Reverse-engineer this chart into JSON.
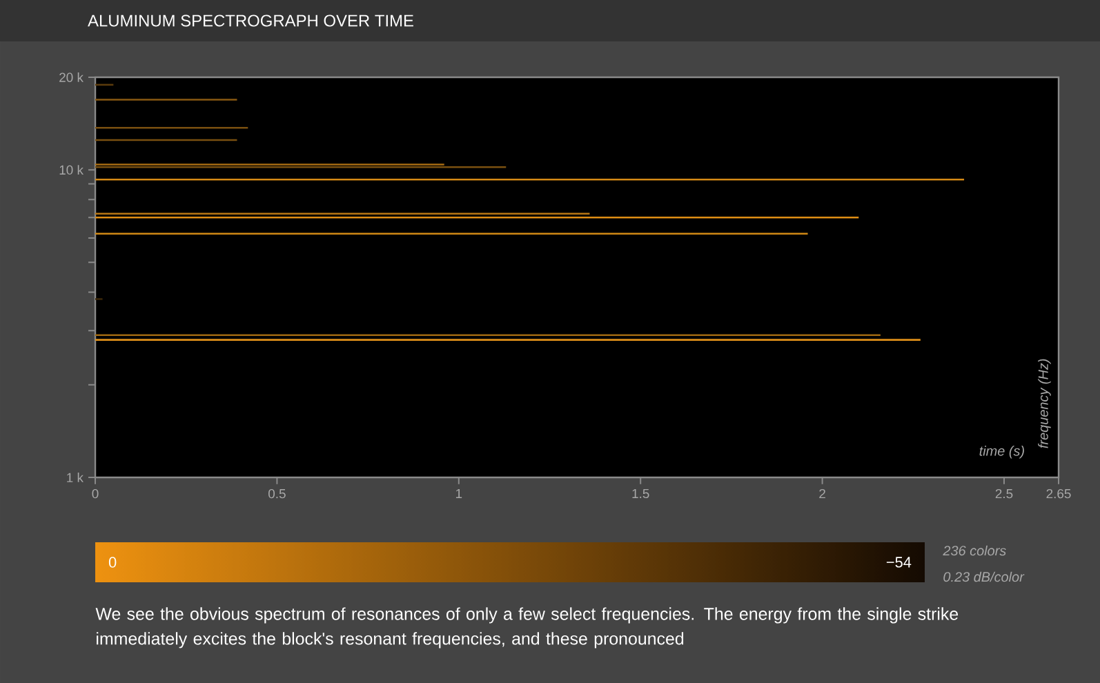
{
  "chart_data": {
    "type": "line",
    "title": "ALUMINUM SPECTROGRAPH OVER TIME",
    "xlabel": "time (s)",
    "ylabel": "frequency (Hz)",
    "log": "y",
    "xlim": [
      0,
      2.65
    ],
    "xticks": [
      0,
      0.5,
      1,
      1.5,
      2,
      2.5,
      2.65
    ],
    "ylim": [
      1000,
      20000
    ],
    "yticks": [
      {
        "value": 1000,
        "label": "1 k"
      },
      {
        "value": 2000,
        "label": null
      },
      {
        "value": 3000,
        "label": null
      },
      {
        "value": 4000,
        "label": null
      },
      {
        "value": 5000,
        "label": null
      },
      {
        "value": 6000,
        "label": null
      },
      {
        "value": 7000,
        "label": null
      },
      {
        "value": 8000,
        "label": null
      },
      {
        "value": 9000,
        "label": null
      },
      {
        "value": 10000,
        "label": "10 k"
      },
      {
        "value": 20000,
        "label": "20 k"
      }
    ],
    "series": [
      {
        "color": "#5a3a0c",
        "x": [
          0,
          0.05
        ],
        "values": [
          18900,
          18900
        ]
      },
      {
        "color": "#8a5a12",
        "x": [
          0,
          0.39
        ],
        "values": [
          16900,
          16900
        ]
      },
      {
        "color": "#7a5010",
        "x": [
          0,
          0.42
        ],
        "values": [
          13700,
          13700
        ]
      },
      {
        "color": "#7a5010",
        "x": [
          0,
          0.39
        ],
        "values": [
          12500,
          12500
        ]
      },
      {
        "color": "#a86c12",
        "x": [
          0,
          0.96
        ],
        "values": [
          10400,
          10400
        ]
      },
      {
        "color": "#7a5010",
        "x": [
          0,
          1.13
        ],
        "values": [
          10200,
          10200
        ]
      },
      {
        "color": "#d58a16",
        "x": [
          0,
          2.39
        ],
        "values": [
          9300,
          9300
        ]
      },
      {
        "color": "#b87614",
        "x": [
          0,
          1.36
        ],
        "values": [
          7200,
          7200
        ]
      },
      {
        "color": "#e08e14",
        "x": [
          0,
          2.1
        ],
        "values": [
          7000,
          7000
        ]
      },
      {
        "color": "#d08814",
        "x": [
          0,
          1.96
        ],
        "values": [
          6200,
          6200
        ]
      },
      {
        "color": "#3a2608",
        "x": [
          0,
          0.02
        ],
        "values": [
          3800,
          3800
        ]
      },
      {
        "color": "#a06810",
        "x": [
          0,
          2.16
        ],
        "values": [
          2900,
          2900
        ]
      },
      {
        "color": "#e0901a",
        "x": [
          0,
          2.27
        ],
        "values": [
          2800,
          2800
        ]
      }
    ],
    "clim": [
      0,
      -54
    ],
    "cticks": [
      0,
      {
        "value": -54,
        "label": "−54"
      }
    ],
    "annotations": [
      "236 colors",
      "0.23 dB/color",
      "We see the obvious spectrum of resonances of only a few select frequencies. The energy from the single strike immediately excites the block's resonant frequencies, and these pronounced"
    ]
  }
}
